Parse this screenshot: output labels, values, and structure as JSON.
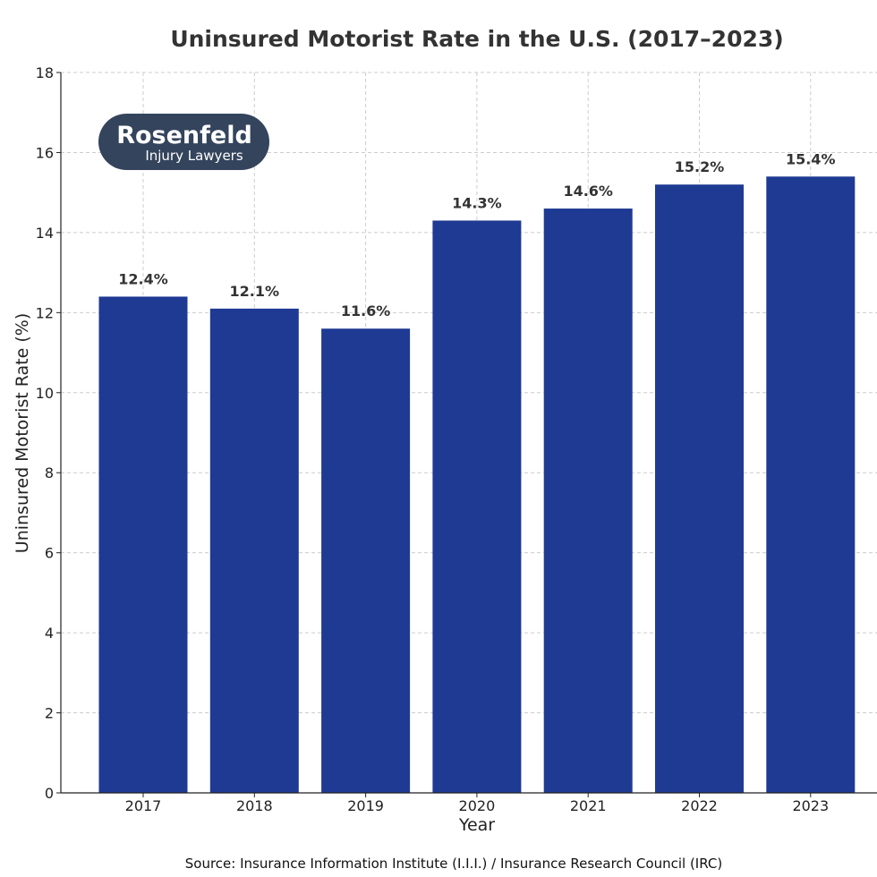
{
  "chart_data": {
    "type": "bar",
    "title": "Uninsured Motorist Rate in the U.S. (2017–2023)",
    "xlabel": "Year",
    "ylabel": "Uninsured Motorist Rate (%)",
    "categories": [
      "2017",
      "2018",
      "2019",
      "2020",
      "2021",
      "2022",
      "2023"
    ],
    "values": [
      12.4,
      12.1,
      11.6,
      14.3,
      14.6,
      15.2,
      15.4
    ],
    "data_labels": [
      "12.4%",
      "12.1%",
      "11.6%",
      "14.3%",
      "14.6%",
      "15.2%",
      "15.4%"
    ],
    "ylim": [
      0,
      18
    ],
    "yticks": [
      0,
      2,
      4,
      6,
      8,
      10,
      12,
      14,
      16,
      18
    ],
    "grid": true,
    "bar_color": "#1f3a93"
  },
  "logo": {
    "name": "Rosenfeld",
    "subtitle": "Injury Lawyers",
    "bg_color": "#34445c"
  },
  "source": "Source: Insurance Information Institute (I.I.I.) / Insurance Research Council (IRC)"
}
